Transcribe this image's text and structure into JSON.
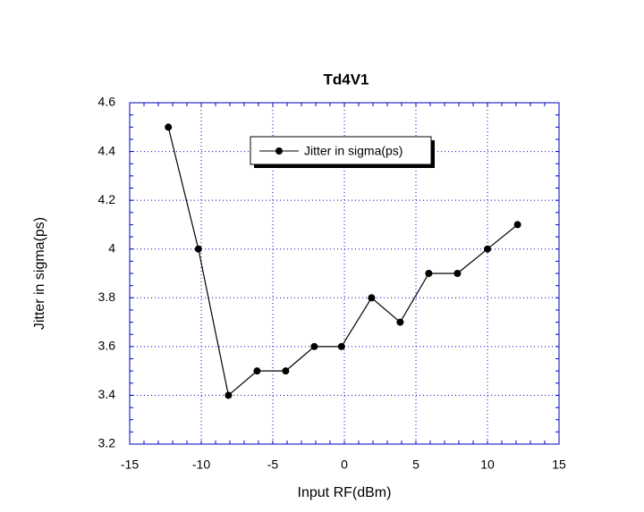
{
  "chart_data": {
    "type": "line",
    "title": "Td4V1",
    "x_label": "Input RF(dBm)",
    "y_label": "Jitter in sigma(ps)",
    "x": [
      -12.3,
      -10.2,
      -8.1,
      -6.1,
      -4.1,
      -2.1,
      -0.2,
      1.9,
      3.9,
      5.9,
      7.9,
      10,
      12.1
    ],
    "series": [
      {
        "name": "Jitter in sigma(ps)",
        "color": "#000000",
        "values": [
          4.5,
          4.0,
          3.4,
          3.5,
          3.5,
          3.6,
          3.6,
          3.8,
          3.7,
          3.9,
          3.9,
          4.0,
          4.1
        ]
      }
    ],
    "xlim": [
      -15,
      15
    ],
    "xticks": [
      -15,
      -10,
      -5,
      0,
      5,
      10,
      15
    ],
    "ylim": [
      3.2,
      4.6
    ],
    "yticks": [
      3.2,
      3.4,
      3.6,
      3.8,
      4,
      4.2,
      4.4,
      4.6
    ],
    "grid": true,
    "grid_color": "#0000c0",
    "legend": "top"
  }
}
